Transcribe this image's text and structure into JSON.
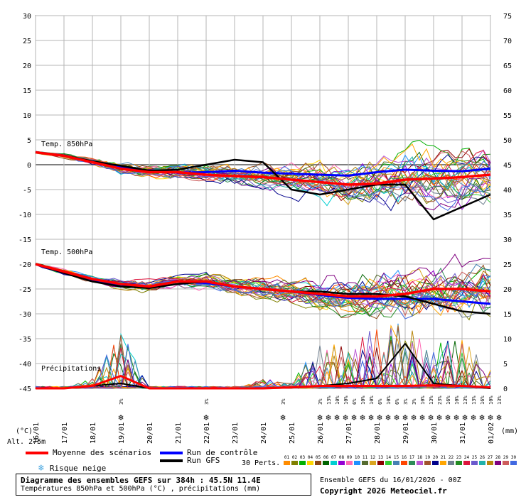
{
  "chart_data": {
    "type": "line",
    "x_labels": [
      "16/01",
      "17/01",
      "18/01",
      "19/01",
      "20/01",
      "21/01",
      "22/01",
      "23/01",
      "24/01",
      "25/01",
      "26/01",
      "27/01",
      "28/01",
      "29/01",
      "30/01",
      "31/01",
      "01/02"
    ],
    "left_axis": {
      "label": "(°C)",
      "min": -45,
      "max": 30,
      "ticks": [
        30,
        25,
        20,
        15,
        10,
        5,
        0,
        -5,
        -10,
        -15,
        -20,
        -25,
        -30,
        -35,
        -40,
        -45
      ]
    },
    "right_axis": {
      "label": "(mm)",
      "min": 0,
      "max": 75,
      "ticks": [
        75,
        70,
        65,
        60,
        55,
        50,
        45,
        40,
        35,
        30,
        25,
        20,
        15,
        10,
        5,
        0
      ]
    },
    "panels": {
      "t850": {
        "label": "Temp. 850hPa",
        "mean": [
          2.5,
          1.8,
          0.5,
          -0.8,
          -1.5,
          -1.5,
          -2,
          -2.3,
          -2.5,
          -3,
          -3.5,
          -4,
          -3.8,
          -3,
          -2.8,
          -2.5,
          -2
        ],
        "control": [
          2.5,
          1.8,
          0.6,
          -0.5,
          -1.2,
          -1.6,
          -1.5,
          -1.2,
          -1.6,
          -1.8,
          -2,
          -2.2,
          -1.5,
          -1,
          -1.2,
          -1.3,
          -0.8
        ],
        "gfs": [
          2.5,
          1.9,
          0.7,
          -0.2,
          -1.2,
          -1,
          0,
          1,
          0.5,
          -5,
          -6,
          -5,
          -4,
          -4,
          -11,
          -8.5,
          -6
        ],
        "spread": [
          0.5,
          0.8,
          1.2,
          1.5,
          2,
          2.2,
          2.5,
          3,
          3.5,
          4,
          5,
          6,
          7,
          7.5,
          8,
          8,
          8
        ]
      },
      "t500": {
        "label": "Temp. 500hPa",
        "mean": [
          -20,
          -21.5,
          -23,
          -24,
          -24.5,
          -23.5,
          -23.5,
          -24.5,
          -25,
          -25.5,
          -26,
          -26.5,
          -26.5,
          -26,
          -25,
          -25,
          -25.5
        ],
        "control": [
          -20,
          -21.8,
          -23.2,
          -24.5,
          -24.5,
          -23.5,
          -23.8,
          -24.5,
          -25,
          -25.5,
          -26.2,
          -26.8,
          -27,
          -27,
          -27,
          -27.5,
          -28
        ],
        "gfs": [
          -20,
          -21.8,
          -23.5,
          -24.5,
          -24.8,
          -24,
          -23.5,
          -24.5,
          -25,
          -25.5,
          -25.5,
          -26,
          -26,
          -26.5,
          -28,
          -29.5,
          -30
        ],
        "spread": [
          0.5,
          0.8,
          1,
          1.5,
          1.8,
          2,
          2.5,
          3,
          3.5,
          4,
          5,
          6,
          7,
          8,
          8,
          8,
          8
        ]
      },
      "precip": {
        "label": "Précipitations",
        "mean": [
          0,
          0,
          0.5,
          2.5,
          0,
          0,
          0,
          0,
          0,
          0.2,
          0.5,
          0.5,
          0.5,
          0.5,
          0.6,
          0.5,
          0.2
        ],
        "gfs": [
          0,
          0,
          0.5,
          1,
          0,
          0,
          0,
          0,
          0,
          0.1,
          0.5,
          1,
          2,
          9,
          1,
          0.5,
          0
        ],
        "peaks": [
          0,
          0,
          2,
          12,
          0,
          0,
          0,
          0,
          2,
          1,
          10,
          8,
          13,
          14,
          9,
          11,
          4
        ]
      }
    },
    "snow_risk": [
      {
        "x": 3.0,
        "pct": "3%"
      },
      {
        "x": 6.0,
        "pct": "3%"
      },
      {
        "x": 8.7,
        "pct": "3%"
      },
      {
        "x": 10.0,
        "pct": "3%"
      },
      {
        "x": 10.3,
        "pct": "13%"
      },
      {
        "x": 10.6,
        "pct": "10%"
      },
      {
        "x": 10.9,
        "pct": "10%"
      },
      {
        "x": 11.2,
        "pct": "6%"
      },
      {
        "x": 11.5,
        "pct": "10%"
      },
      {
        "x": 11.8,
        "pct": "10%"
      },
      {
        "x": 12.1,
        "pct": "6%"
      },
      {
        "x": 12.4,
        "pct": "10%"
      },
      {
        "x": 12.7,
        "pct": "6%"
      },
      {
        "x": 13.0,
        "pct": "3%"
      },
      {
        "x": 13.3,
        "pct": "3%"
      },
      {
        "x": 13.6,
        "pct": "10%"
      },
      {
        "x": 13.9,
        "pct": "13%"
      },
      {
        "x": 14.2,
        "pct": "23%"
      },
      {
        "x": 14.5,
        "pct": "16%"
      },
      {
        "x": 14.8,
        "pct": "10%"
      },
      {
        "x": 15.1,
        "pct": "13%"
      },
      {
        "x": 15.4,
        "pct": "13%"
      },
      {
        "x": 15.7,
        "pct": "16%"
      },
      {
        "x": 16.0,
        "pct": "10%"
      },
      {
        "x": 16.3,
        "pct": "13%"
      }
    ]
  },
  "alt_label": "Alt. 275m",
  "legend": {
    "mean": "Moyenne des scénarios",
    "control": "Run de contrôle",
    "gfs": "Run GFS",
    "snow": "Risque neige",
    "perts_label": "30 Perts.",
    "perts": [
      "01",
      "02",
      "03",
      "04",
      "05",
      "06",
      "07",
      "08",
      "09",
      "10",
      "11",
      "12",
      "13",
      "14",
      "15",
      "16",
      "17",
      "18",
      "19",
      "20",
      "21",
      "22",
      "23",
      "24",
      "25",
      "26",
      "27",
      "28",
      "29",
      "30"
    ]
  },
  "caption": {
    "title": "Diagramme des ensembles GEFS sur 384h : 45.5N 11.4E",
    "subtitle": "Températures 850hPa et 500hPa (°C) , précipitations (mm)"
  },
  "info": {
    "run": "Ensemble GEFS du 16/01/2026 - 00Z",
    "copyright": "Copyright 2026 Meteociel.fr"
  },
  "colors": {
    "mean": "#ff0000",
    "control": "#0000ff",
    "gfs": "#000000",
    "grid": "#b4b4b4",
    "snow": "#7ec8f0",
    "perts": [
      "#ff8c00",
      "#808000",
      "#00b000",
      "#ffd700",
      "#8b4513",
      "#006400",
      "#00ced1",
      "#9400d3",
      "#ff69b4",
      "#1e90ff",
      "#556b2f",
      "#daa520",
      "#8b0000",
      "#32cd32",
      "#4682b4",
      "#ff4500",
      "#2e8b57",
      "#ba55d3",
      "#a0522d",
      "#00008b",
      "#ffa500",
      "#708090",
      "#228b22",
      "#dc143c",
      "#6a5acd",
      "#20b2aa",
      "#b8860b",
      "#800080",
      "#cd5c5c",
      "#4169e1"
    ]
  }
}
